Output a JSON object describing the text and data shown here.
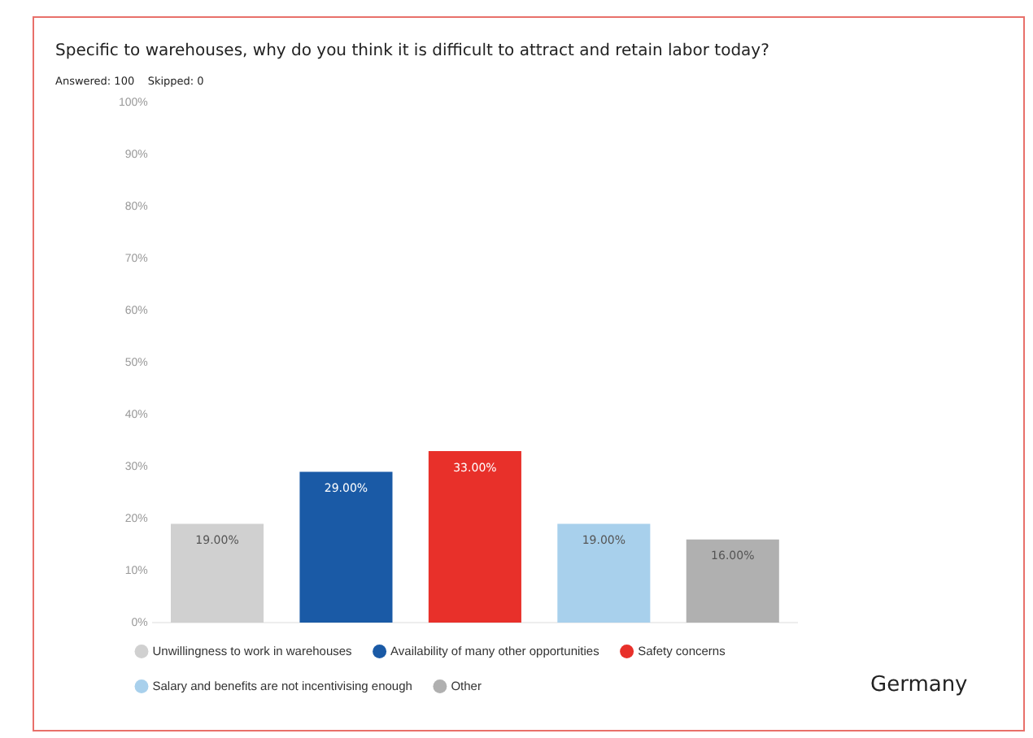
{
  "chart_data": {
    "type": "bar",
    "title": "Specific to warehouses, why do you think it is difficult to attract and retain labor today?",
    "subtitle": "Answered: 100    Skipped: 0",
    "categories": [
      null
    ],
    "series": [
      {
        "name": "Unwillingness to work in warehouses",
        "color": "#d0d0d0",
        "values": [
          19
        ],
        "value_labels": [
          "19.00%"
        ]
      },
      {
        "name": "Availability of many other opportunities",
        "color": "#1a5aa6",
        "values": [
          29
        ],
        "value_labels": [
          "29.00%"
        ]
      },
      {
        "name": "Safety concerns",
        "color": "#e8302a",
        "values": [
          33
        ],
        "value_labels": [
          "33.00%"
        ]
      },
      {
        "name": "Salary and benefits are not incentivising enough",
        "color": "#a8d0ec",
        "values": [
          19
        ],
        "value_labels": [
          "19.00%"
        ]
      },
      {
        "name": "Other",
        "color": "#b0b0b0",
        "values": [
          16
        ],
        "value_labels": [
          "16.00%"
        ]
      }
    ],
    "ylim": [
      0,
      100
    ],
    "yticks": [
      {
        "value": 0,
        "label": "0%"
      },
      {
        "value": 10,
        "label": "10%"
      },
      {
        "value": 20,
        "label": "20%"
      },
      {
        "value": 30,
        "label": "30%"
      },
      {
        "value": 40,
        "label": "40%"
      },
      {
        "value": 50,
        "label": "50%"
      },
      {
        "value": 60,
        "label": "60%"
      },
      {
        "value": 70,
        "label": "70%"
      },
      {
        "value": 80,
        "label": "80%"
      },
      {
        "value": 90,
        "label": "90%"
      },
      {
        "value": 100,
        "label": "100%"
      }
    ],
    "tick_labels": "y",
    "grid": false,
    "legend": "bottom",
    "annotations": [
      "Germany"
    ]
  }
}
